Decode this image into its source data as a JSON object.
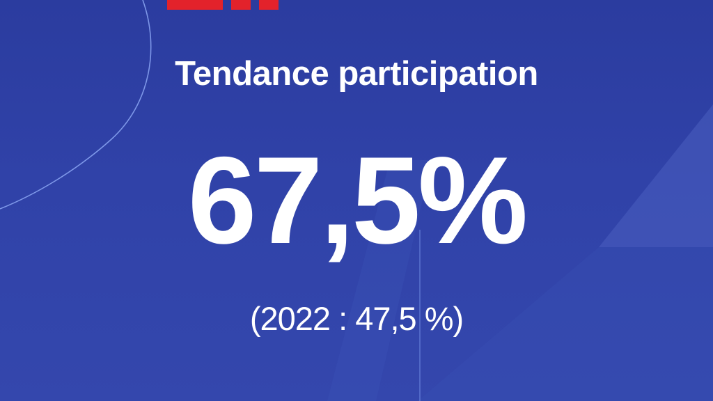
{
  "headline": "Tendance participation",
  "turnout_value": "67,5%",
  "comparison": "(2022 : 47,5 %)",
  "colors": {
    "background": "#2e40a6",
    "text": "#ffffff",
    "logo_red": "#e3222b",
    "accent_line": "#8fb0ff"
  }
}
